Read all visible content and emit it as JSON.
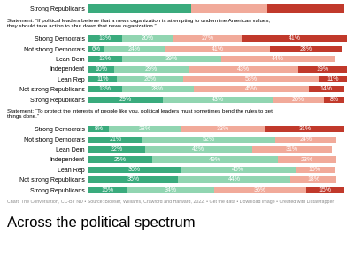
{
  "chart_data": [
    {
      "type": "bar",
      "orientation": "horizontal",
      "stacked": true,
      "categories": [
        "Strong Republicans"
      ],
      "series": [
        {
          "color": "#3aab7d",
          "values": [
            40
          ]
        },
        {
          "color": "#f1aa9a",
          "values": [
            30
          ]
        },
        {
          "color": "#c1392b",
          "values": [
            30
          ]
        }
      ],
      "xlim": [
        0,
        101
      ],
      "tick_labels": "y",
      "data_labels": false,
      "grid": false
    },
    {
      "type": "bar",
      "orientation": "horizontal",
      "stacked": true,
      "title": "Statement: “If political leaders believe that a news organization is attempting to undermine American values,\nthey should take action to shut down that news organization.”",
      "categories": [
        "Strong Democrats",
        "Not strong Democrats",
        "Lean Dem",
        "Independent",
        "Lean Rep",
        "Not strong Republicans",
        "Strong Republicans"
      ],
      "series": [
        {
          "color": "#3aab7d",
          "values": [
            13,
            6,
            13,
            10,
            11,
            13,
            29
          ],
          "value_labels": [
            "13%",
            "6%",
            "13%",
            "10%",
            "11%",
            "13%",
            "29%"
          ]
        },
        {
          "color": "#91d5b1",
          "values": [
            20,
            24,
            39,
            29,
            26,
            28,
            43
          ],
          "value_labels": [
            "20%",
            "24%",
            "39%",
            "29%",
            "26%",
            "28%",
            "43%"
          ]
        },
        {
          "color": "#f1aa9a",
          "values": [
            27,
            41,
            44,
            43,
            53,
            45,
            20
          ],
          "value_labels": [
            "27%",
            "41%",
            "44%",
            "43%",
            "53%",
            "45%",
            "20%"
          ]
        },
        {
          "color": "#c1392b",
          "values": [
            41,
            28,
            0,
            19,
            11,
            14,
            8
          ],
          "value_labels": [
            "41%",
            "28%",
            null,
            "19%",
            "11%",
            "14%",
            "8%"
          ]
        }
      ],
      "xlim": [
        0,
        101
      ],
      "tick_labels": "y",
      "data_labels": true,
      "grid": false
    },
    {
      "type": "bar",
      "orientation": "horizontal",
      "stacked": true,
      "title": "Statement: “To protect the interests of people like you, political leaders must sometimes bend the rules to get\nthings done.”",
      "categories": [
        "Strong Democrats",
        "Not strong Democrats",
        "Lean Dem",
        "Independent",
        "Lean Rep",
        "Not strong Republicans",
        "Strong Republicans"
      ],
      "series": [
        {
          "color": "#3aab7d",
          "values": [
            8,
            21,
            22,
            25,
            36,
            35,
            15
          ],
          "value_labels": [
            "8%",
            "21%",
            "22%",
            "25%",
            "36%",
            "35%",
            "15%"
          ]
        },
        {
          "color": "#91d5b1",
          "values": [
            28,
            52,
            42,
            49,
            45,
            44,
            34
          ],
          "value_labels": [
            "28%",
            "52%",
            "42%",
            "49%",
            "45%",
            "44%",
            "34%"
          ]
        },
        {
          "color": "#f1aa9a",
          "values": [
            33,
            24,
            31,
            23,
            15,
            18,
            36
          ],
          "value_labels": [
            "33%",
            "24%",
            "31%",
            "23%",
            "15%",
            "18%",
            "36%"
          ]
        },
        {
          "color": "#c1392b",
          "values": [
            31,
            0,
            0,
            0,
            0,
            0,
            15
          ],
          "value_labels": [
            "31%",
            null,
            null,
            null,
            null,
            null,
            "15%"
          ]
        }
      ],
      "xlim": [
        0,
        101
      ],
      "tick_labels": "y",
      "data_labels": true,
      "grid": false,
      "annotations": [
        "Chart: The Conversation, CC-BY ND • Source: Bloeser, Williams, Crawford and Harward, 2022. • Get the data • Download image • Created with Datawrapper",
        "Across the political spectrum"
      ]
    }
  ]
}
